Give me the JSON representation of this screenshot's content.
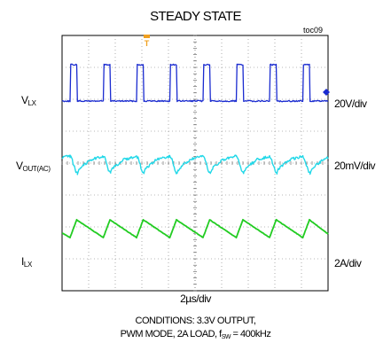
{
  "chart_data": {
    "type": "line",
    "title": "STEADY STATE",
    "figure_id": "toc09",
    "grid": true,
    "grid_divisions": {
      "x": 10,
      "y": 8
    },
    "x_scale": "2µs/div",
    "x_range_us": [
      0,
      20
    ],
    "switching_frequency_khz": 400,
    "series": [
      {
        "name_main": "V",
        "name_sub": "LX",
        "scale": "20V/div",
        "color": "#1a2bd0",
        "shape": "square pulses",
        "low_v": 0,
        "high_v": 20,
        "period_us": 2.5,
        "x_us": [
          0.0,
          0.6,
          0.65,
          1.1,
          1.15,
          3.1,
          3.15,
          3.6,
          3.65,
          5.6,
          5.65,
          6.1,
          6.15,
          8.1,
          8.15,
          8.6,
          8.65,
          10.6,
          10.65,
          11.1,
          11.15,
          13.1,
          13.15,
          13.6,
          13.65,
          15.6,
          15.65,
          16.1,
          16.15,
          18.1,
          18.15,
          18.6,
          18.65,
          20.0
        ],
        "y_v": [
          0,
          0,
          20,
          20,
          0,
          0,
          20,
          20,
          0,
          0,
          20,
          20,
          0,
          0,
          20,
          20,
          0,
          0,
          20,
          20,
          0,
          0,
          20,
          20,
          0,
          0,
          20,
          20,
          0,
          0,
          20,
          20,
          0,
          0
        ]
      },
      {
        "name_main": "V",
        "name_sub": "OUT(AC)",
        "scale": "20mV/div",
        "color": "#22d8e8",
        "shape": "ripple",
        "min_mv": -10,
        "max_mv": 10,
        "period_us": 2.5,
        "x_us": [
          0.0,
          0.6,
          1.15,
          1.9,
          3.1,
          3.65,
          4.4,
          5.6,
          6.15,
          6.9,
          8.1,
          8.65,
          9.4,
          10.6,
          11.15,
          11.9,
          13.1,
          13.65,
          14.4,
          15.6,
          16.15,
          16.9,
          18.1,
          18.65,
          19.4,
          20.0
        ],
        "y_mv": [
          8,
          10,
          -10,
          3,
          10,
          -10,
          3,
          10,
          -10,
          3,
          10,
          -10,
          3,
          10,
          -10,
          3,
          10,
          -10,
          3,
          10,
          -10,
          3,
          10,
          -10,
          3,
          8
        ]
      },
      {
        "name_main": "I",
        "name_sub": "LX",
        "scale": "2A/div",
        "color": "#22cc22",
        "shape": "sawtooth",
        "min_a": -1,
        "max_a": 1,
        "period_us": 2.5,
        "x_us": [
          0.0,
          0.6,
          1.1,
          3.1,
          3.6,
          5.6,
          6.1,
          8.1,
          8.6,
          10.6,
          11.1,
          13.1,
          13.6,
          15.6,
          16.1,
          18.1,
          18.6,
          20.0
        ],
        "y_a": [
          -0.5,
          -1,
          1,
          -1,
          1,
          -1,
          1,
          -1,
          1,
          -1,
          1,
          -1,
          1,
          -1,
          1,
          -1,
          1,
          -0.6
        ]
      }
    ],
    "xlabel": "2µs/div",
    "conditions_line1": "CONDITIONS: 3.3V OUTPUT,",
    "conditions_line2_a": "PWM MODE, 2A LOAD, f",
    "conditions_line2_sub": "SW",
    "conditions_line2_b": " = 400kHz"
  }
}
